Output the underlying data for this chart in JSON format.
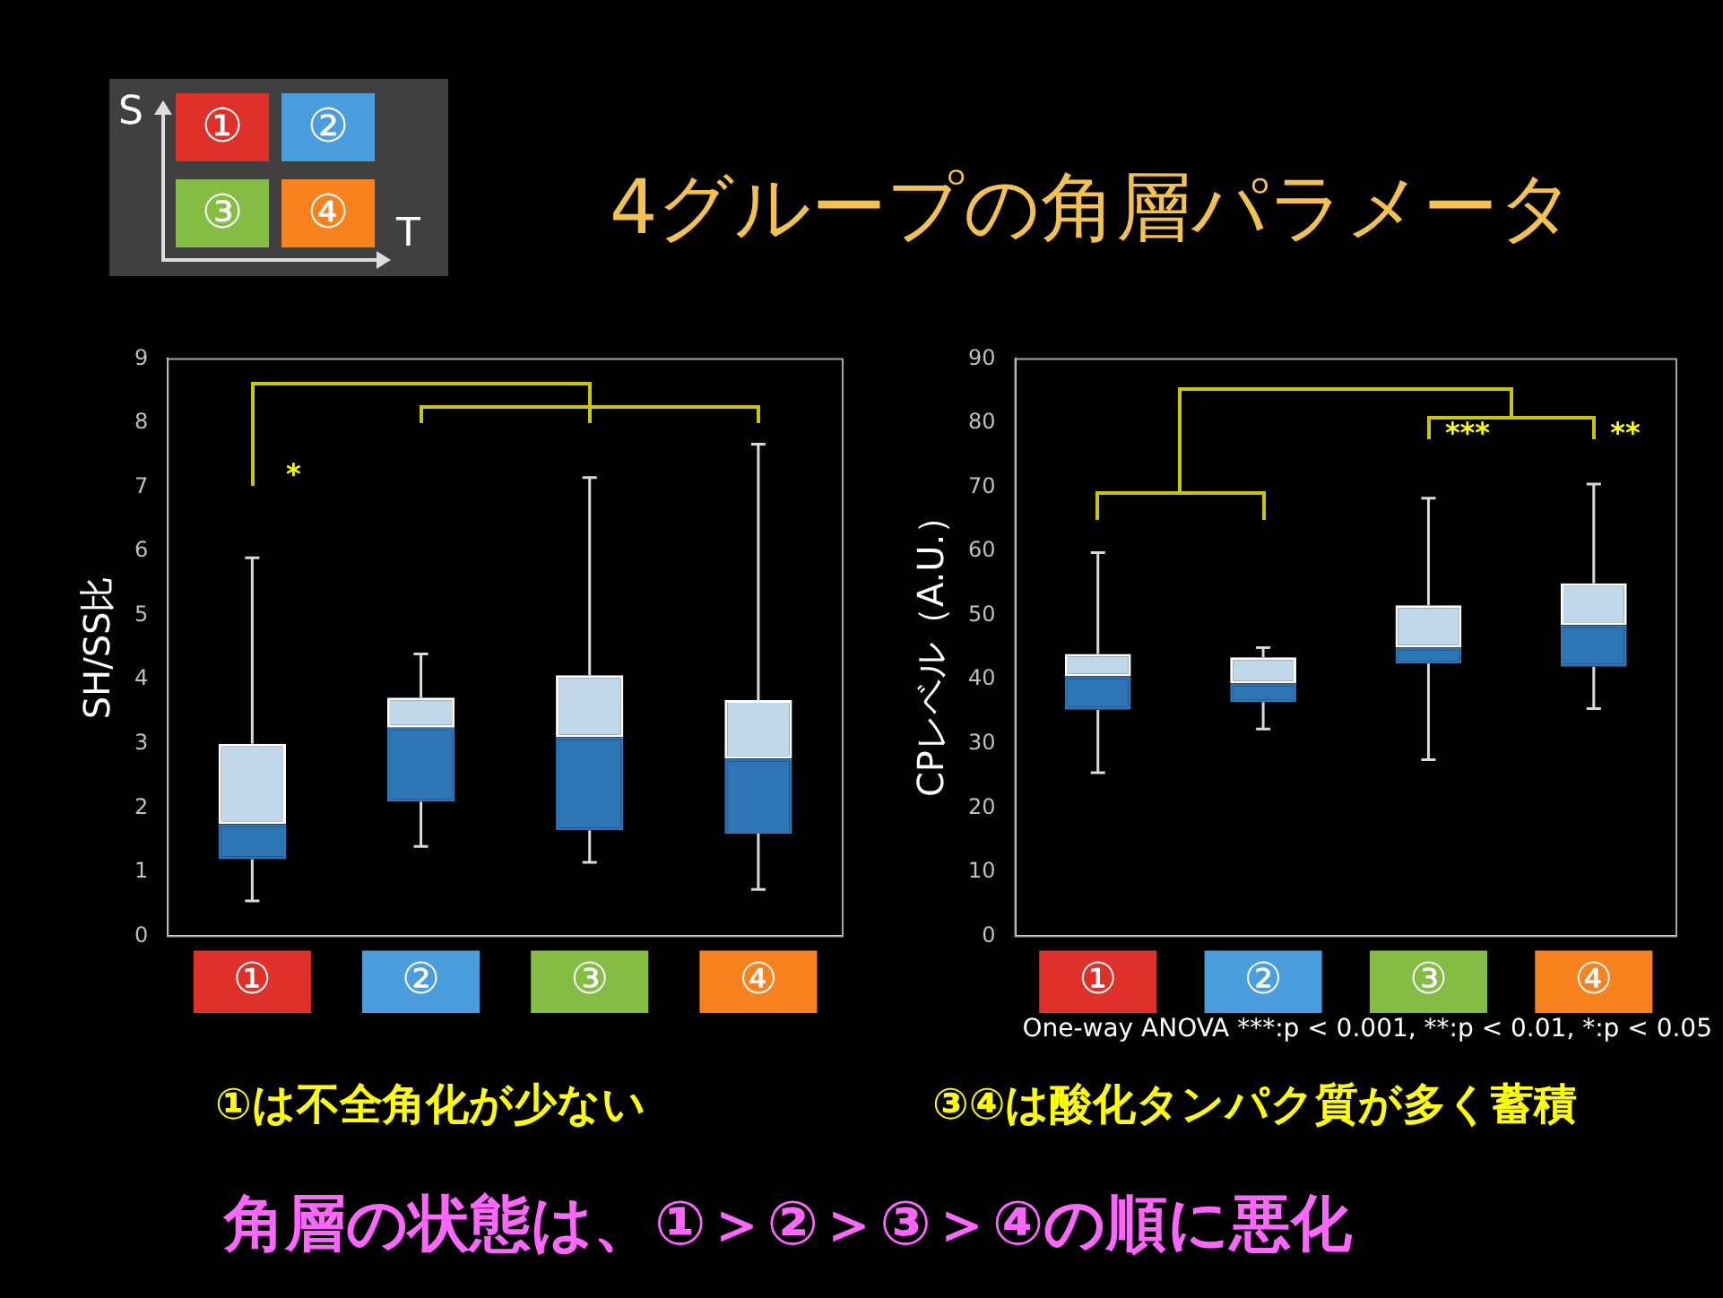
{
  "chart_data": [
    {
      "type": "box",
      "ylabel": "SH/SS比",
      "categories": [
        "①",
        "②",
        "③",
        "④"
      ],
      "color": "#2e75b6",
      "ylim": [
        0,
        9
      ],
      "yticks": [
        0,
        1,
        2,
        3,
        4,
        5,
        6,
        7,
        8,
        9
      ],
      "grid": false,
      "legend": false,
      "boxes": [
        {
          "low": 0.55,
          "q1": 1.2,
          "median": 1.75,
          "q3": 3.0,
          "high": 5.9
        },
        {
          "low": 1.4,
          "q1": 2.1,
          "median": 3.25,
          "q3": 3.72,
          "high": 4.4
        },
        {
          "low": 1.15,
          "q1": 1.65,
          "median": 3.1,
          "q3": 4.07,
          "high": 7.15
        },
        {
          "low": 0.73,
          "q1": 1.6,
          "median": 2.77,
          "q3": 3.68,
          "high": 7.67
        }
      ],
      "annotations": [
        "*"
      ]
    },
    {
      "type": "box",
      "ylabel": "CPレベル（A.U.）",
      "categories": [
        "①",
        "②",
        "③",
        "④"
      ],
      "color": "#2e75b6",
      "ylim": [
        0,
        90
      ],
      "yticks": [
        0,
        10,
        20,
        30,
        40,
        50,
        60,
        70,
        80,
        90
      ],
      "grid": false,
      "legend": false,
      "boxes": [
        {
          "low": 25.5,
          "q1": 35.3,
          "median": 40.5,
          "q3": 44,
          "high": 59.8
        },
        {
          "low": 32.3,
          "q1": 36.5,
          "median": 39.4,
          "q3": 43.5,
          "high": 45
        },
        {
          "low": 27.5,
          "q1": 42.5,
          "median": 45,
          "q3": 51.6,
          "high": 68.3
        },
        {
          "low": 35.5,
          "q1": 42,
          "median": 48.5,
          "q3": 55,
          "high": 70.5
        }
      ],
      "annotations": [
        "***",
        "**",
        "One-way ANOVA ***:p < 0.001, **:p < 0.01, *:p < 0.05"
      ]
    },
    {
      "type": "other",
      "title": "4グループの角層パラメータ",
      "annotations": [
        "S",
        "T",
        "①",
        "②",
        "③",
        "④",
        "①は不全角化が少ない",
        "③④は酸化タンパク質が多く蓄積",
        "角層の状態は、①＞②＞③＞④の順に悪化"
      ]
    }
  ]
}
